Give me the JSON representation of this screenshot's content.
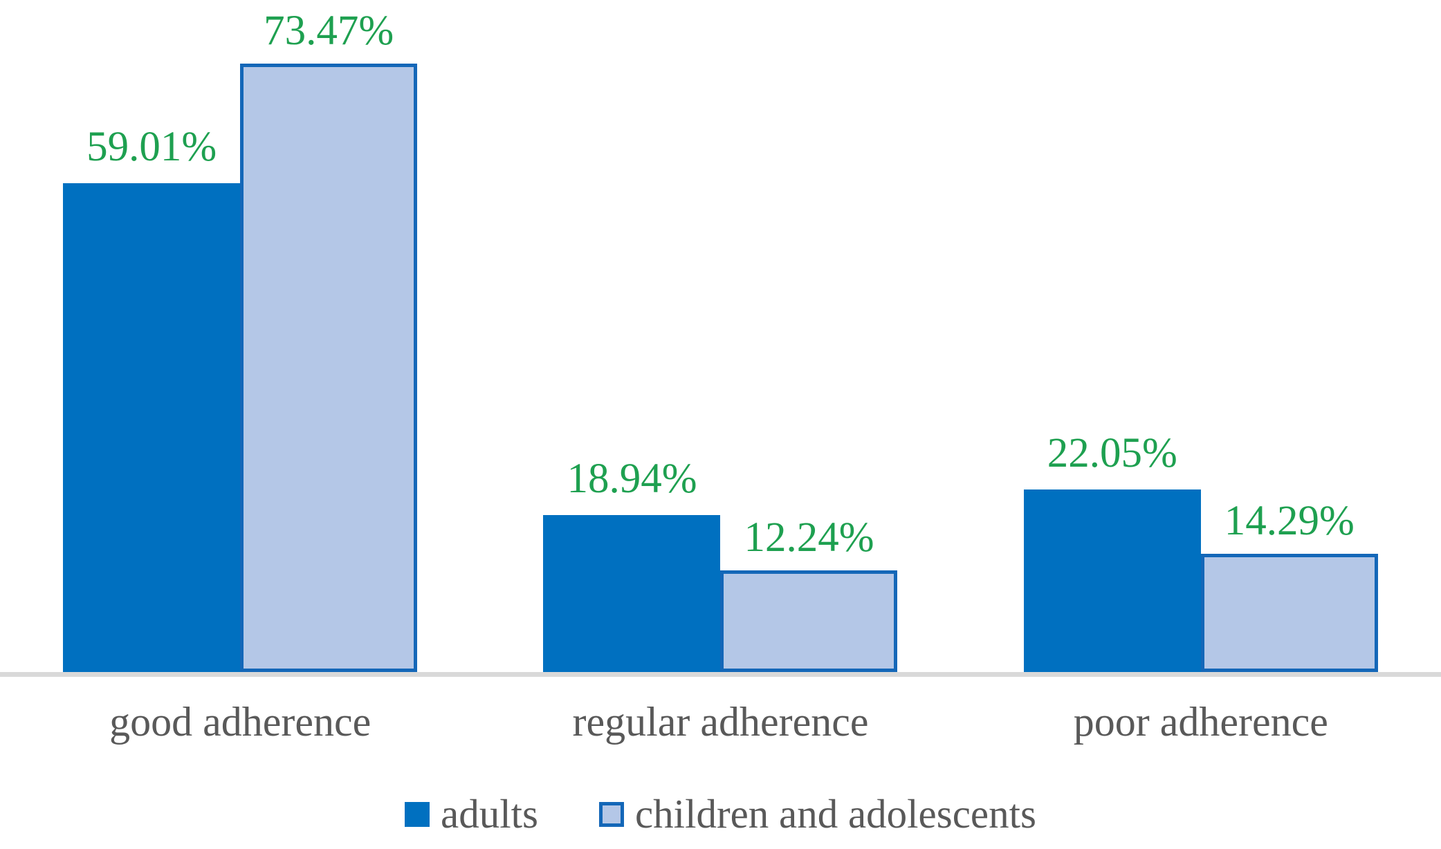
{
  "chart_data": {
    "type": "bar",
    "title": "",
    "xlabel": "",
    "ylabel": "",
    "categories": [
      "good adherence",
      "regular adherence",
      "poor adherence"
    ],
    "series": [
      {
        "name": "adults",
        "values": [
          59.01,
          18.94,
          22.05
        ],
        "labels": [
          "59.01%",
          "18.94%",
          "22.05%"
        ],
        "fill": "#0070C0",
        "border": ""
      },
      {
        "name": "children and adolescents",
        "values": [
          73.47,
          12.24,
          14.29
        ],
        "labels": [
          "73.47%",
          "12.24%",
          "14.29%"
        ],
        "fill": "#B4C7E7",
        "border": "#1467B8"
      }
    ],
    "ylim": [
      0,
      81
    ],
    "grid": false,
    "legend_position": "bottom",
    "value_label_color": "#1EA050",
    "category_label_color": "#595959",
    "legend_label_color": "#595959",
    "axis_line_color": "#D9D9D9"
  }
}
